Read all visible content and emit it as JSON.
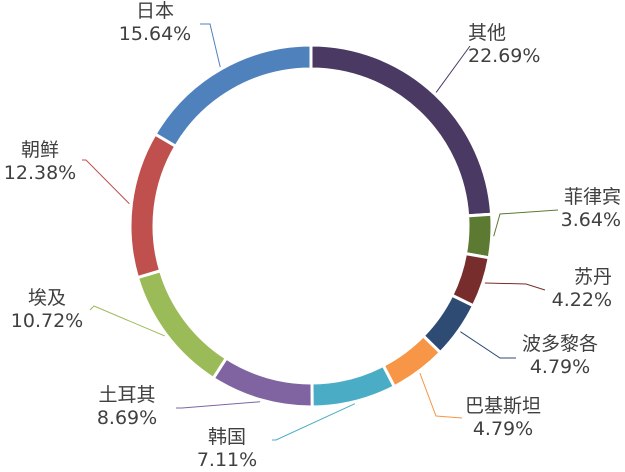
{
  "chart_data": {
    "type": "pie",
    "variant": "doughnut",
    "slices": [
      {
        "label": "其他",
        "value": 22.69,
        "value_text": "22.69%",
        "color": "#4a3a63"
      },
      {
        "label": "菲律宾",
        "value": 3.64,
        "value_text": "3.64%",
        "color": "#5c7a32"
      },
      {
        "label": "苏丹",
        "value": 4.22,
        "value_text": "4.22%",
        "color": "#772d2b"
      },
      {
        "label": "波多黎各",
        "value": 4.79,
        "value_text": "4.79%",
        "color": "#2d4b73"
      },
      {
        "label": "巴基斯坦",
        "value": 4.79,
        "value_text": "4.79%",
        "color": "#f79646"
      },
      {
        "label": "韩国",
        "value": 7.11,
        "value_text": "7.11%",
        "color": "#4bacc6"
      },
      {
        "label": "土耳其",
        "value": 8.69,
        "value_text": "8.69%",
        "color": "#8064a2"
      },
      {
        "label": "埃及",
        "value": 10.72,
        "value_text": "10.72%",
        "color": "#9bbb59"
      },
      {
        "label": "朝鲜",
        "value": 12.38,
        "value_text": "12.38%",
        "color": "#c0504d"
      },
      {
        "label": "日本",
        "value": 15.64,
        "value_text": "15.64%",
        "color": "#4f81bd"
      }
    ],
    "leader_line_colors": [
      "#4a3a63",
      "#5c7a32",
      "#772d2b",
      "#2d4b73",
      "#f79646",
      "#4bacc6",
      "#8064a2",
      "#9bbb59",
      "#c0504d",
      "#4f81bd"
    ],
    "legend": "none"
  }
}
